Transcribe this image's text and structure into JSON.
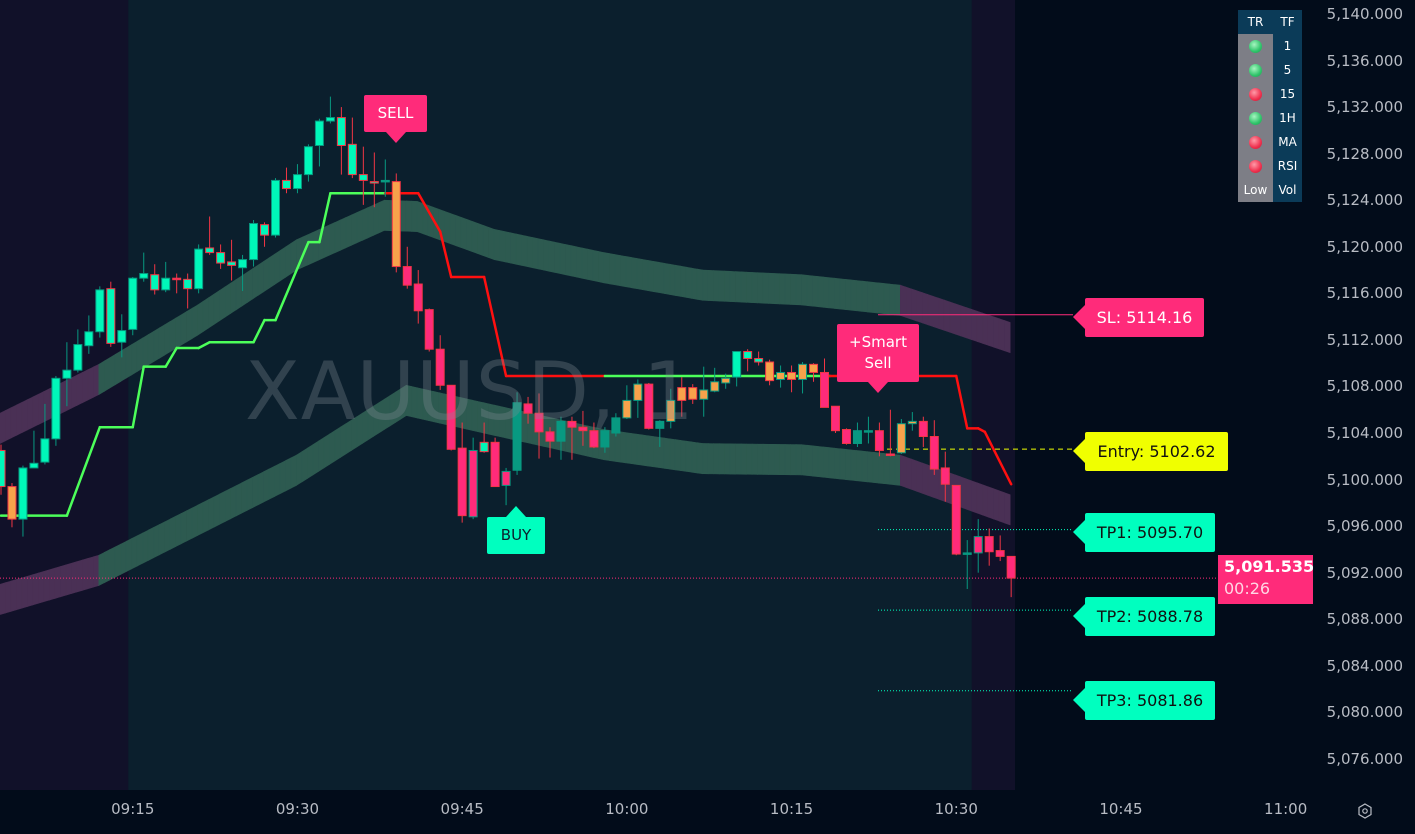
{
  "symbol_watermark": "XAUUSD, 1",
  "colors": {
    "background": "#0b1f2d",
    "session_shade": "#111129",
    "axis_background": "#020c1a",
    "up_body": "#00f7b9",
    "teal": "#089981",
    "down_body": "#ff2b7a",
    "down_border": "#f23645",
    "orange": "#f7a24b",
    "trail_bull": "#4cff5a",
    "trail_bear": "#ff1010",
    "band_green": "#2d5a50",
    "band_purple": "#4a3055",
    "sl": "#ff2b7a",
    "entry": "#f0ff00",
    "tp": "#00ffbf"
  },
  "status_table": {
    "headers": [
      "TR",
      "TF"
    ],
    "rows": [
      {
        "tf": "1",
        "state": "green"
      },
      {
        "tf": "5",
        "state": "green"
      },
      {
        "tf": "15",
        "state": "red"
      },
      {
        "tf": "1H",
        "state": "green"
      },
      {
        "tf": "MA",
        "state": "red"
      },
      {
        "tf": "RSI",
        "state": "red"
      }
    ],
    "footer": [
      "Low",
      "Vol"
    ]
  },
  "signals": {
    "sell": "SELL",
    "buy": "BUY",
    "smart_sell_line1": "+Smart",
    "smart_sell_line2": "Sell"
  },
  "levels": {
    "sl": {
      "label": "SL: 5114.16",
      "price": 5114.16
    },
    "entry": {
      "label": "Entry: 5102.62",
      "price": 5102.62
    },
    "tp1": {
      "label": "TP1: 5095.70",
      "price": 5095.7
    },
    "tp2": {
      "label": "TP2: 5088.78",
      "price": 5088.78
    },
    "tp3": {
      "label": "TP3: 5081.86",
      "price": 5081.86
    }
  },
  "current_price": {
    "value": "5,091.535",
    "price": 5091.535,
    "countdown": "00:26"
  },
  "chart_data": {
    "type": "candlestick",
    "interval_minutes": 1,
    "x_start": "09:03",
    "ylim": [
      5074,
      5141.2
    ],
    "y_ticks": [
      "5,140.000",
      "5,136.000",
      "5,132.000",
      "5,128.000",
      "5,124.000",
      "5,120.000",
      "5,116.000",
      "5,112.000",
      "5,108.000",
      "5,104.000",
      "5,100.000",
      "5,096.000",
      "5,092.000",
      "5,088.000",
      "5,084.000",
      "5,080.000",
      "5,076.000"
    ],
    "x_ticks": [
      "09:15",
      "09:30",
      "09:45",
      "10:00",
      "10:15",
      "10:30",
      "10:45",
      "11:00"
    ],
    "candle_fields": [
      "open",
      "high",
      "low",
      "close",
      "style"
    ],
    "candles": [
      [
        5099.4,
        5103.0,
        5098.7,
        5102.5,
        "gr"
      ],
      [
        5099.4,
        5099.7,
        5095.9,
        5096.6,
        "o"
      ],
      [
        5096.6,
        5101.2,
        5095.1,
        5101.0,
        "g"
      ],
      [
        5101.0,
        5104.2,
        5101.0,
        5101.4,
        "g"
      ],
      [
        5101.5,
        5106.5,
        5101.3,
        5103.5,
        "g"
      ],
      [
        5103.5,
        5108.9,
        5102.9,
        5108.7,
        "g"
      ],
      [
        5108.7,
        5111.8,
        5106.3,
        5109.4,
        "g"
      ],
      [
        5109.4,
        5112.9,
        5109.2,
        5111.6,
        "g"
      ],
      [
        5111.5,
        5114.1,
        5110.8,
        5112.7,
        "g"
      ],
      [
        5112.7,
        5116.6,
        5112.2,
        5116.3,
        "g"
      ],
      [
        5116.4,
        5117.0,
        5111.4,
        5111.7,
        "gr"
      ],
      [
        5111.8,
        5114.2,
        5110.5,
        5112.8,
        "g"
      ],
      [
        5112.9,
        5117.4,
        5112.4,
        5117.3,
        "g"
      ],
      [
        5117.3,
        5119.5,
        5117.0,
        5117.7,
        "g"
      ],
      [
        5117.6,
        5118.5,
        5115.9,
        5116.3,
        "gr"
      ],
      [
        5116.3,
        5118.7,
        5116.1,
        5117.3,
        "g"
      ],
      [
        5117.3,
        5117.7,
        5116.0,
        5117.3,
        "r"
      ],
      [
        5117.2,
        5117.7,
        5114.7,
        5116.4,
        "gr"
      ],
      [
        5116.4,
        5120.2,
        5116.0,
        5119.8,
        "g"
      ],
      [
        5119.9,
        5122.6,
        5119.3,
        5119.5,
        "gr"
      ],
      [
        5119.5,
        5120.2,
        5118.1,
        5118.6,
        "gr"
      ],
      [
        5118.7,
        5120.6,
        5117.1,
        5118.4,
        "gr"
      ],
      [
        5118.2,
        5119.3,
        5116.2,
        5118.9,
        "g"
      ],
      [
        5118.9,
        5122.3,
        5118.3,
        5122.0,
        "g"
      ],
      [
        5121.9,
        5122.1,
        5120.0,
        5121.0,
        "gr"
      ],
      [
        5121.0,
        5125.9,
        5120.8,
        5125.7,
        "g"
      ],
      [
        5125.7,
        5126.8,
        5124.6,
        5125.0,
        "gr"
      ],
      [
        5125.0,
        5127.1,
        5124.6,
        5126.2,
        "g"
      ],
      [
        5126.2,
        5128.8,
        5125.6,
        5128.6,
        "g"
      ],
      [
        5128.7,
        5131.0,
        5126.9,
        5130.8,
        "g"
      ],
      [
        5130.8,
        5132.9,
        5130.6,
        5131.1,
        "g"
      ],
      [
        5131.1,
        5132.0,
        5126.2,
        5128.7,
        "gr"
      ],
      [
        5128.8,
        5131.1,
        5125.9,
        5126.2,
        "gr"
      ],
      [
        5126.2,
        5128.6,
        5123.6,
        5125.7,
        "gr"
      ],
      [
        5125.6,
        5128.1,
        5123.4,
        5125.5,
        "gr"
      ],
      [
        5125.7,
        5127.5,
        5124.3,
        5125.7,
        "t"
      ],
      [
        5125.6,
        5126.3,
        5117.8,
        5118.3,
        "o"
      ],
      [
        5118.3,
        5120.0,
        5116.4,
        5116.7,
        "r"
      ],
      [
        5116.8,
        5118.0,
        5113.4,
        5114.5,
        "r"
      ],
      [
        5114.6,
        5114.7,
        5111.0,
        5111.2,
        "r"
      ],
      [
        5111.2,
        5112.4,
        5107.7,
        5108.1,
        "r"
      ],
      [
        5108.1,
        5108.1,
        5102.5,
        5102.6,
        "r"
      ],
      [
        5102.7,
        5104.9,
        5096.3,
        5096.9,
        "r"
      ],
      [
        5096.8,
        5103.6,
        5096.6,
        5102.5,
        "rt"
      ],
      [
        5102.4,
        5104.9,
        5102.3,
        5103.2,
        "gr"
      ],
      [
        5103.2,
        5103.6,
        5099.4,
        5099.4,
        "r"
      ],
      [
        5099.5,
        5101.0,
        5097.8,
        5100.7,
        "rt"
      ],
      [
        5100.8,
        5107.5,
        5100.4,
        5106.6,
        "t"
      ],
      [
        5106.5,
        5107.1,
        5104.8,
        5105.7,
        "r"
      ],
      [
        5105.7,
        5107.4,
        5101.8,
        5104.1,
        "r"
      ],
      [
        5104.1,
        5104.5,
        5101.9,
        5103.3,
        "r"
      ],
      [
        5103.3,
        5105.4,
        5101.7,
        5105.0,
        "t"
      ],
      [
        5105.0,
        5105.4,
        5101.7,
        5104.5,
        "r"
      ],
      [
        5104.5,
        5105.9,
        5102.9,
        5104.2,
        "r"
      ],
      [
        5104.2,
        5104.9,
        5102.7,
        5102.8,
        "r"
      ],
      [
        5102.8,
        5104.5,
        5102.3,
        5104.2,
        "t"
      ],
      [
        5104.0,
        5105.7,
        5103.7,
        5105.3,
        "t"
      ],
      [
        5105.3,
        5108.1,
        5105.2,
        5106.8,
        "ot"
      ],
      [
        5106.8,
        5108.6,
        5105.3,
        5108.2,
        "ot"
      ],
      [
        5108.2,
        5108.3,
        5104.3,
        5104.4,
        "r"
      ],
      [
        5104.4,
        5105.1,
        5102.8,
        5105.0,
        "t"
      ],
      [
        5105.0,
        5107.8,
        5104.4,
        5106.8,
        "ot"
      ],
      [
        5106.8,
        5108.8,
        5105.4,
        5107.9,
        "o"
      ],
      [
        5107.9,
        5108.2,
        5106.5,
        5106.9,
        "o"
      ],
      [
        5106.9,
        5109.7,
        5105.4,
        5107.7,
        "ot"
      ],
      [
        5107.6,
        5109.6,
        5107.5,
        5108.4,
        "ot"
      ],
      [
        5108.3,
        5109.1,
        5107.8,
        5108.7,
        "ot"
      ],
      [
        5108.8,
        5111.0,
        5108.0,
        5111.0,
        "g"
      ],
      [
        5111.0,
        5111.2,
        5109.3,
        5110.4,
        "gr"
      ],
      [
        5110.4,
        5111.0,
        5109.8,
        5110.1,
        "gr"
      ],
      [
        5110.1,
        5110.3,
        5108.1,
        5108.5,
        "o"
      ],
      [
        5108.6,
        5109.8,
        5107.9,
        5109.2,
        "ot"
      ],
      [
        5109.2,
        5109.8,
        5107.5,
        5108.6,
        "o"
      ],
      [
        5108.6,
        5110.1,
        5107.4,
        5109.9,
        "ot"
      ],
      [
        5109.9,
        5110.0,
        5108.4,
        5109.2,
        "o"
      ],
      [
        5109.2,
        5110.4,
        5106.2,
        5106.2,
        "r"
      ],
      [
        5106.3,
        5106.3,
        5104.0,
        5104.2,
        "r"
      ],
      [
        5104.3,
        5104.4,
        5103.0,
        5103.1,
        "r"
      ],
      [
        5103.1,
        5104.9,
        5102.8,
        5104.2,
        "t"
      ],
      [
        5104.2,
        5105.4,
        5103.1,
        5104.1,
        "t"
      ],
      [
        5104.2,
        5104.9,
        5102.0,
        5102.5,
        "r"
      ],
      [
        5102.2,
        5106.0,
        5102.0,
        5102.1,
        "r"
      ],
      [
        5102.3,
        5105.2,
        5102.2,
        5104.8,
        "ot"
      ],
      [
        5104.8,
        5105.8,
        5104.2,
        5105.0,
        "ot"
      ],
      [
        5105.0,
        5105.4,
        5102.8,
        5103.7,
        "r"
      ],
      [
        5103.7,
        5105.1,
        5100.4,
        5100.9,
        "r"
      ],
      [
        5101.0,
        5102.4,
        5098.1,
        5099.6,
        "r"
      ],
      [
        5099.5,
        5099.5,
        5093.5,
        5093.6,
        "r"
      ],
      [
        5093.6,
        5094.8,
        5090.6,
        5093.7,
        "t"
      ],
      [
        5093.7,
        5096.6,
        5092.0,
        5095.1,
        "rt"
      ],
      [
        5095.1,
        5095.8,
        5092.6,
        5093.8,
        "r"
      ],
      [
        5093.9,
        5095.2,
        5093.0,
        5093.4,
        "r"
      ],
      [
        5093.4,
        5093.4,
        5089.9,
        5091.535,
        "r"
      ]
    ],
    "trailing_stop": [
      [
        0,
        5096.9,
        "bull"
      ],
      [
        6,
        5096.9,
        "bull"
      ],
      [
        9,
        5104.5,
        "bull"
      ],
      [
        12,
        5104.5,
        "bull"
      ],
      [
        13,
        5109.7,
        "bull"
      ],
      [
        15,
        5109.7,
        "bull"
      ],
      [
        16,
        5111.3,
        "bull"
      ],
      [
        18,
        5111.3,
        "bull"
      ],
      [
        19,
        5111.8,
        "bull"
      ],
      [
        23,
        5111.8,
        "bull"
      ],
      [
        24,
        5113.7,
        "bull"
      ],
      [
        25,
        5113.7,
        "bull"
      ],
      [
        28,
        5120.4,
        "bull"
      ],
      [
        29,
        5120.4,
        "bull"
      ],
      [
        30,
        5124.6,
        "bull"
      ],
      [
        35,
        5124.6,
        "bull"
      ],
      [
        38,
        5124.6,
        "bear"
      ],
      [
        40,
        5121.3,
        "bear"
      ],
      [
        41,
        5117.4,
        "bear"
      ],
      [
        44,
        5117.4,
        "bear"
      ],
      [
        46,
        5108.9,
        "bear"
      ],
      [
        55,
        5108.9,
        "bear"
      ],
      [
        75.5,
        5108.9,
        "bull"
      ],
      [
        87,
        5108.9,
        "bear"
      ],
      [
        88,
        5104.4,
        "bear"
      ],
      [
        89,
        5104.4,
        "bear"
      ],
      [
        89.6,
        5104.1,
        "bear"
      ],
      [
        92,
        5099.6,
        "bear"
      ]
    ],
    "bands": [
      {
        "points": [
          [
            0,
            5104.4
          ],
          [
            9,
            5108.6
          ],
          [
            18,
            5113.7
          ],
          [
            27,
            5119.3
          ],
          [
            35,
            5122.7
          ],
          [
            38,
            5122.6
          ],
          [
            45,
            5120.2
          ],
          [
            55,
            5118.2
          ],
          [
            64,
            5116.7
          ],
          [
            73,
            5116.3
          ],
          [
            82,
            5115.4
          ],
          [
            92,
            5112.2
          ]
        ],
        "half_width": 1.3
      },
      {
        "points": [
          [
            0,
            5089.7
          ],
          [
            9,
            5092.2
          ],
          [
            18,
            5096.5
          ],
          [
            27,
            5100.8
          ],
          [
            37,
            5106.8
          ],
          [
            45,
            5105.1
          ],
          [
            55,
            5103.0
          ],
          [
            64,
            5101.8
          ],
          [
            73,
            5101.7
          ],
          [
            82,
            5100.8
          ],
          [
            92,
            5097.4
          ]
        ],
        "half_width": 1.3
      }
    ],
    "band_purple_ranges": [
      [
        0,
        9
      ],
      [
        82,
        92
      ]
    ],
    "session_shading_index_ranges": [
      [
        -1,
        11.6
      ],
      [
        88.4,
        92.5
      ]
    ]
  }
}
